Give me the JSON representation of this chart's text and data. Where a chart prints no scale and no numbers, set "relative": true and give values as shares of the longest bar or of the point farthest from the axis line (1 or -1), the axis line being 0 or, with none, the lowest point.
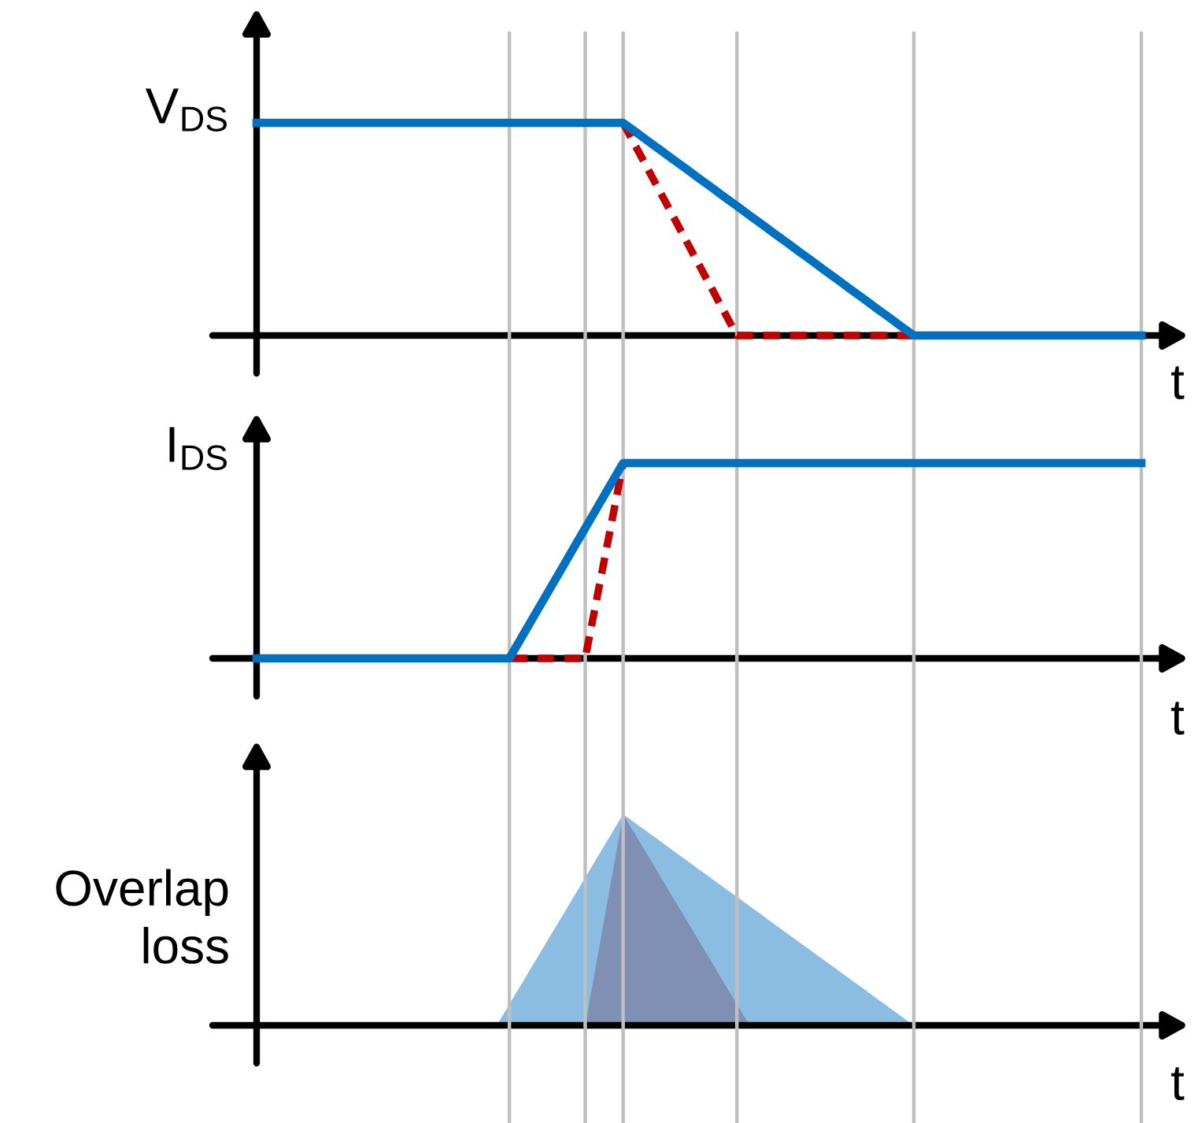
{
  "chart_data": [
    {
      "type": "line",
      "ylabel": "V$_{DS}$",
      "xlabel": "t",
      "relative": true,
      "marker": "none",
      "grid": "x",
      "categories": [
        null,
        null,
        null,
        null,
        null,
        null,
        null,
        null,
        null,
        null,
        null,
        null,
        null,
        null,
        null,
        null,
        null,
        null,
        null,
        null,
        null,
        null,
        null,
        null,
        null,
        null,
        null,
        null,
        null,
        null,
        null,
        null,
        null,
        null,
        null,
        null,
        null,
        null,
        null,
        null,
        null,
        null,
        null,
        null,
        null,
        null,
        null,
        null,
        null,
        null,
        null,
        null,
        null,
        null,
        null,
        null,
        null,
        null,
        null,
        null,
        null,
        null,
        null,
        null,
        null,
        null,
        null,
        null,
        null,
        null,
        null
      ],
      "series": [
        {
          "color": "#0070c0",
          "line_style": "solid",
          "values": [
            1,
            1,
            1,
            1,
            1,
            1,
            1,
            1,
            1,
            1,
            1,
            1,
            1,
            1,
            1,
            1,
            1,
            1,
            1,
            1,
            1,
            1,
            1,
            1,
            1,
            1,
            1,
            1,
            1,
            1,
            0.957,
            0.913,
            0.87,
            0.826,
            0.783,
            0.739,
            0.696,
            0.652,
            0.609,
            0.565,
            0.522,
            0.478,
            0.435,
            0.391,
            0.348,
            0.304,
            0.261,
            0.217,
            0.174,
            0.13,
            0.087,
            0.043,
            0,
            0,
            0,
            0,
            0,
            0,
            0,
            0,
            0,
            0,
            0,
            0,
            0,
            0,
            0,
            0,
            0,
            0,
            0
          ]
        },
        {
          "color": "#c00000",
          "line_style": "dashed",
          "values": [
            null,
            null,
            null,
            null,
            null,
            null,
            null,
            null,
            null,
            null,
            null,
            null,
            null,
            null,
            null,
            null,
            null,
            null,
            null,
            null,
            null,
            null,
            null,
            null,
            null,
            null,
            null,
            null,
            null,
            1,
            0.889,
            0.778,
            0.667,
            0.556,
            0.444,
            0.333,
            0.222,
            0.111,
            0,
            0,
            0,
            0,
            0,
            0,
            0,
            0,
            0,
            0,
            0,
            0,
            0,
            0,
            0,
            null,
            null,
            null,
            null,
            null,
            null,
            null,
            null,
            null,
            null,
            null,
            null,
            null,
            null,
            null,
            null,
            null,
            null
          ]
        }
      ]
    },
    {
      "type": "line",
      "ylabel": "I$_{DS}$",
      "xlabel": "t",
      "relative": true,
      "marker": "none",
      "grid": "x",
      "categories": [
        null,
        null,
        null,
        null,
        null,
        null,
        null,
        null,
        null,
        null,
        null,
        null,
        null,
        null,
        null,
        null,
        null,
        null,
        null,
        null,
        null,
        null,
        null,
        null,
        null,
        null,
        null,
        null,
        null,
        null,
        null,
        null,
        null,
        null,
        null,
        null,
        null,
        null,
        null,
        null,
        null,
        null,
        null,
        null,
        null,
        null,
        null,
        null,
        null,
        null,
        null,
        null,
        null,
        null,
        null,
        null,
        null,
        null,
        null,
        null,
        null,
        null,
        null,
        null,
        null,
        null,
        null,
        null,
        null,
        null,
        null
      ],
      "series": [
        {
          "color": "#0070c0",
          "line_style": "solid",
          "values": [
            0,
            0,
            0,
            0,
            0,
            0,
            0,
            0,
            0,
            0,
            0,
            0,
            0,
            0,
            0,
            0,
            0,
            0,
            0,
            0,
            0,
            0.111,
            0.222,
            0.333,
            0.444,
            0.556,
            0.667,
            0.778,
            0.889,
            1,
            1,
            1,
            1,
            1,
            1,
            1,
            1,
            1,
            1,
            1,
            1,
            1,
            1,
            1,
            1,
            1,
            1,
            1,
            1,
            1,
            1,
            1,
            1,
            1,
            1,
            1,
            1,
            1,
            1,
            1,
            1,
            1,
            1,
            1,
            1,
            1,
            1,
            1,
            1,
            1,
            1
          ]
        },
        {
          "color": "#c00000",
          "line_style": "dashed",
          "values": [
            null,
            null,
            null,
            null,
            null,
            null,
            null,
            null,
            null,
            null,
            null,
            null,
            null,
            null,
            null,
            null,
            null,
            null,
            0,
            0,
            0,
            0,
            0,
            0,
            0,
            0,
            0,
            0.333,
            0.667,
            1,
            null,
            null,
            null,
            null,
            null,
            null,
            null,
            null,
            null,
            null,
            null,
            null,
            null,
            null,
            null,
            null,
            null,
            null,
            null,
            null,
            null,
            null,
            null,
            null,
            null,
            null,
            null,
            null,
            null,
            null,
            null,
            null,
            null,
            null,
            null,
            null,
            null,
            null,
            null,
            null,
            null
          ]
        }
      ]
    },
    {
      "type": "area",
      "ylabel": "Overlap\nloss",
      "xlabel": "t",
      "relative": true,
      "grid": "x",
      "categories": [
        null,
        null,
        null,
        null,
        null,
        null,
        null,
        null,
        null,
        null,
        null,
        null,
        null,
        null,
        null,
        null,
        null,
        null,
        null,
        null,
        null,
        null,
        null,
        null,
        null,
        null,
        null,
        null,
        null,
        null,
        null,
        null,
        null,
        null,
        null,
        null,
        null,
        null,
        null,
        null,
        null,
        null,
        null,
        null,
        null,
        null,
        null,
        null,
        null,
        null,
        null,
        null,
        null,
        null,
        null,
        null,
        null,
        null,
        null,
        null,
        null,
        null,
        null,
        null,
        null,
        null,
        null,
        null,
        null,
        null,
        null
      ],
      "series": [
        {
          "color": "#8bbce2",
          "values": [
            null,
            null,
            null,
            null,
            null,
            null,
            null,
            null,
            null,
            null,
            null,
            null,
            null,
            null,
            null,
            null,
            null,
            null,
            null,
            0,
            0.1,
            0.2,
            0.3,
            0.4,
            0.5,
            0.6,
            0.7,
            0.8,
            0.9,
            1,
            0.957,
            0.913,
            0.87,
            0.826,
            0.783,
            0.739,
            0.696,
            0.652,
            0.609,
            0.565,
            0.522,
            0.478,
            0.435,
            0.391,
            0.348,
            0.304,
            0.261,
            0.217,
            0.174,
            0.13,
            0.087,
            0.043,
            0,
            null,
            null,
            null,
            null,
            null,
            null,
            null,
            null,
            null,
            null,
            null,
            null,
            null,
            null,
            null,
            null,
            null,
            null
          ]
        },
        {
          "color": "#8090b4",
          "values": [
            null,
            null,
            null,
            null,
            null,
            null,
            null,
            null,
            null,
            null,
            null,
            null,
            null,
            null,
            null,
            null,
            null,
            null,
            null,
            null,
            null,
            null,
            null,
            null,
            null,
            null,
            0,
            0.333,
            0.667,
            1,
            0.9,
            0.8,
            0.7,
            0.6,
            0.5,
            0.4,
            0.3,
            0.2,
            0.1,
            0,
            null,
            null,
            null,
            null,
            null,
            null,
            null,
            null,
            null,
            null,
            null,
            null,
            null,
            null,
            null,
            null,
            null,
            null,
            null,
            null,
            null,
            null,
            null,
            null,
            null,
            null,
            null,
            null,
            null,
            null,
            null
          ]
        }
      ]
    }
  ]
}
